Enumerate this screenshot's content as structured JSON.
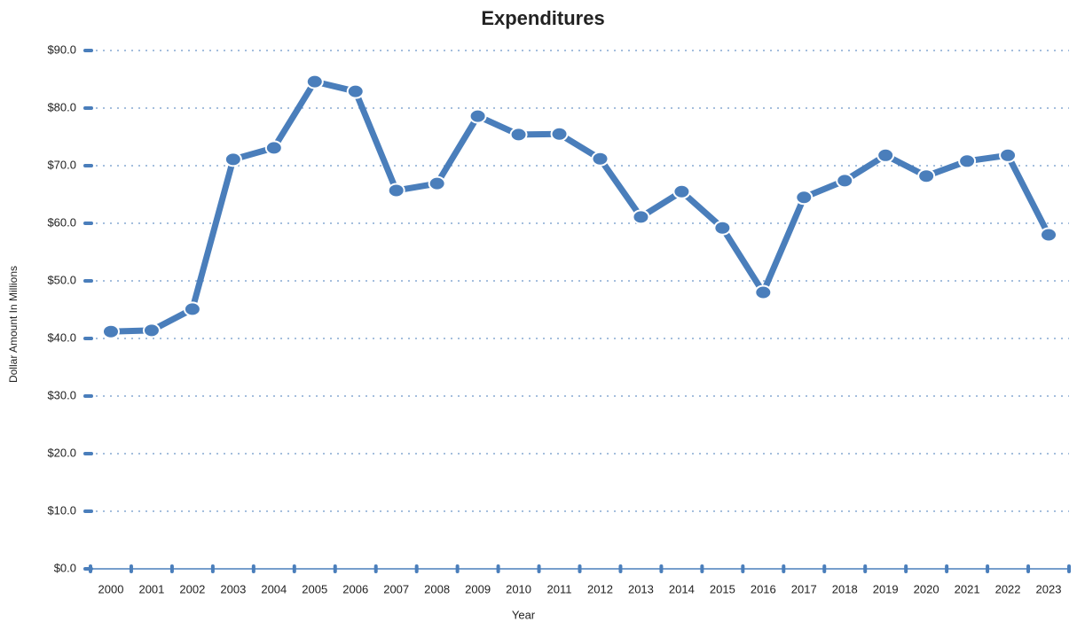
{
  "chart_data": {
    "type": "line",
    "title": "Expenditures",
    "x_label": "Year",
    "y_label": "Dollar Amount In Millions",
    "categories": [
      "2000",
      "2001",
      "2002",
      "2003",
      "2004",
      "2005",
      "2006",
      "2007",
      "2008",
      "2009",
      "2010",
      "2011",
      "2012",
      "2013",
      "2014",
      "2015",
      "2016",
      "2017",
      "2018",
      "2019",
      "2020",
      "2021",
      "2022",
      "2023"
    ],
    "series": [
      {
        "name": "Expenditures",
        "color": "#4a7ebb",
        "values": [
          41.2,
          41.4,
          45.1,
          71.1,
          73.1,
          84.6,
          82.9,
          65.7,
          66.9,
          78.6,
          75.4,
          75.5,
          71.2,
          61.1,
          65.5,
          59.2,
          48.0,
          64.5,
          67.4,
          71.8,
          68.2,
          70.8,
          71.8,
          58.0
        ]
      }
    ],
    "ylim": [
      0,
      90
    ],
    "yticks": [
      {
        "value": 0,
        "label": "$0.0"
      },
      {
        "value": 10,
        "label": "$10.0"
      },
      {
        "value": 20,
        "label": "$20.0"
      },
      {
        "value": 30,
        "label": "$30.0"
      },
      {
        "value": 40,
        "label": "$40.0"
      },
      {
        "value": 50,
        "label": "$50.0"
      },
      {
        "value": 60,
        "label": "$60.0"
      },
      {
        "value": 70,
        "label": "$70.0"
      },
      {
        "value": 80,
        "label": "$80.0"
      },
      {
        "value": 90,
        "label": "$90.0"
      }
    ],
    "grid": true
  }
}
